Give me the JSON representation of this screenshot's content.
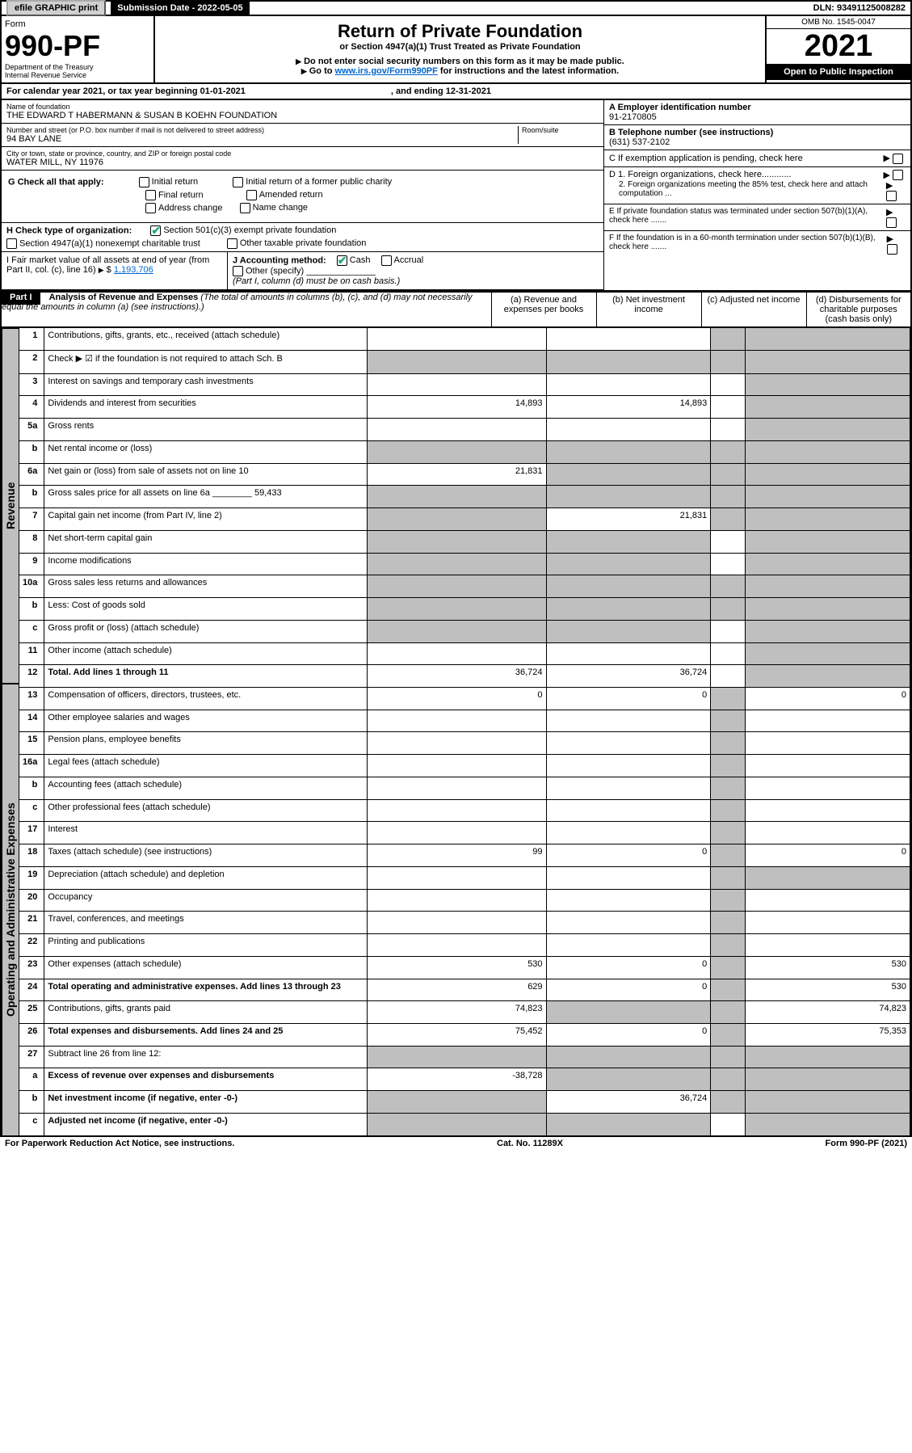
{
  "header": {
    "efile": "efile GRAPHIC print",
    "submission": "Submission Date - 2022-05-05",
    "dln": "DLN: 93491125008282"
  },
  "title": {
    "form": "Form",
    "form_no": "990-PF",
    "dept1": "Department of the Treasury",
    "dept2": "Internal Revenue Service",
    "main": "Return of Private Foundation",
    "sub": "or Section 4947(a)(1) Trust Treated as Private Foundation",
    "note1": "Do not enter social security numbers on this form as it may be made public.",
    "note2_pre": "Go to ",
    "note2_link": "www.irs.gov/Form990PF",
    "note2_post": " for instructions and the latest information.",
    "omb": "OMB No. 1545-0047",
    "year": "2021",
    "open": "Open to Public Inspection"
  },
  "calyear": {
    "text": "For calendar year 2021, or tax year beginning 01-01-2021",
    "ending": ", and ending 12-31-2021"
  },
  "info": {
    "name_label": "Name of foundation",
    "name": "THE EDWARD T HABERMANN & SUSAN B KOEHN FOUNDATION",
    "addr_label": "Number and street (or P.O. box number if mail is not delivered to street address)",
    "addr": "94 BAY LANE",
    "room_label": "Room/suite",
    "city_label": "City or town, state or province, country, and ZIP or foreign postal code",
    "city": "WATER MILL, NY  11976",
    "a_label": "A Employer identification number",
    "a_val": "91-2170805",
    "b_label": "B Telephone number (see instructions)",
    "b_val": "(631) 537-2102",
    "c_label": "C If exemption application is pending, check here",
    "d1": "D 1. Foreign organizations, check here............",
    "d2": "2. Foreign organizations meeting the 85% test, check here and attach computation ...",
    "e": "E If private foundation status was terminated under section 507(b)(1)(A), check here .......",
    "f": "F If the foundation is in a 60-month termination under section 507(b)(1)(B), check here ......."
  },
  "g": {
    "label": "G Check all that apply:",
    "initial": "Initial return",
    "initial_former": "Initial return of a former public charity",
    "final": "Final return",
    "amended": "Amended return",
    "address": "Address change",
    "name_change": "Name change"
  },
  "h": {
    "label": "H Check type of organization:",
    "501c3": "Section 501(c)(3) exempt private foundation",
    "4947": "Section 4947(a)(1) nonexempt charitable trust",
    "other_tax": "Other taxable private foundation"
  },
  "i": {
    "label": "I Fair market value of all assets at end of year (from Part II, col. (c), line 16)",
    "val": "1,193,706"
  },
  "j": {
    "label": "J Accounting method:",
    "cash": "Cash",
    "accrual": "Accrual",
    "other": "Other (specify)",
    "note": "(Part I, column (d) must be on cash basis.)"
  },
  "part1": {
    "label": "Part I",
    "title": "Analysis of Revenue and Expenses",
    "sub": " (The total of amounts in columns (b), (c), and (d) may not necessarily equal the amounts in column (a) (see instructions).)",
    "col_a": "(a) Revenue and expenses per books",
    "col_b": "(b) Net investment income",
    "col_c": "(c) Adjusted net income",
    "col_d": "(d) Disbursements for charitable purposes (cash basis only)"
  },
  "vert": {
    "revenue": "Revenue",
    "expenses": "Operating and Administrative Expenses"
  },
  "rows": [
    {
      "n": "1",
      "d": "Contributions, gifts, grants, etc., received (attach schedule)",
      "a": "",
      "b": "",
      "c": "s",
      "ds": "s"
    },
    {
      "n": "2",
      "d": "Check ▶ ☑ if the foundation is not required to attach Sch. B",
      "a": "s",
      "b": "s",
      "c": "s",
      "ds": "s",
      "bold_not": true
    },
    {
      "n": "3",
      "d": "Interest on savings and temporary cash investments",
      "a": "",
      "b": "",
      "c": "",
      "ds": "s"
    },
    {
      "n": "4",
      "d": "Dividends and interest from securities",
      "a": "14,893",
      "b": "14,893",
      "c": "",
      "ds": "s"
    },
    {
      "n": "5a",
      "d": "Gross rents",
      "a": "",
      "b": "",
      "c": "",
      "ds": "s"
    },
    {
      "n": "b",
      "d": "Net rental income or (loss)",
      "a": "s",
      "b": "s",
      "c": "s",
      "ds": "s"
    },
    {
      "n": "6a",
      "d": "Net gain or (loss) from sale of assets not on line 10",
      "a": "21,831",
      "b": "s",
      "c": "s",
      "ds": "s"
    },
    {
      "n": "b",
      "d": "Gross sales price for all assets on line 6a ________ 59,433",
      "a": "s",
      "b": "s",
      "c": "s",
      "ds": "s"
    },
    {
      "n": "7",
      "d": "Capital gain net income (from Part IV, line 2)",
      "a": "s",
      "b": "21,831",
      "c": "s",
      "ds": "s"
    },
    {
      "n": "8",
      "d": "Net short-term capital gain",
      "a": "s",
      "b": "s",
      "c": "",
      "ds": "s"
    },
    {
      "n": "9",
      "d": "Income modifications",
      "a": "s",
      "b": "s",
      "c": "",
      "ds": "s"
    },
    {
      "n": "10a",
      "d": "Gross sales less returns and allowances",
      "a": "s",
      "b": "s",
      "c": "s",
      "ds": "s"
    },
    {
      "n": "b",
      "d": "Less: Cost of goods sold",
      "a": "s",
      "b": "s",
      "c": "s",
      "ds": "s"
    },
    {
      "n": "c",
      "d": "Gross profit or (loss) (attach schedule)",
      "a": "s",
      "b": "s",
      "c": "",
      "ds": "s"
    },
    {
      "n": "11",
      "d": "Other income (attach schedule)",
      "a": "",
      "b": "",
      "c": "",
      "ds": "s"
    },
    {
      "n": "12",
      "d": "Total. Add lines 1 through 11",
      "a": "36,724",
      "b": "36,724",
      "c": "",
      "ds": "s",
      "bold": true
    },
    {
      "n": "13",
      "d": "Compensation of officers, directors, trustees, etc.",
      "a": "0",
      "b": "0",
      "c": "s",
      "ds": "0"
    },
    {
      "n": "14",
      "d": "Other employee salaries and wages",
      "a": "",
      "b": "",
      "c": "s",
      "ds": ""
    },
    {
      "n": "15",
      "d": "Pension plans, employee benefits",
      "a": "",
      "b": "",
      "c": "s",
      "ds": ""
    },
    {
      "n": "16a",
      "d": "Legal fees (attach schedule)",
      "a": "",
      "b": "",
      "c": "s",
      "ds": ""
    },
    {
      "n": "b",
      "d": "Accounting fees (attach schedule)",
      "a": "",
      "b": "",
      "c": "s",
      "ds": ""
    },
    {
      "n": "c",
      "d": "Other professional fees (attach schedule)",
      "a": "",
      "b": "",
      "c": "s",
      "ds": ""
    },
    {
      "n": "17",
      "d": "Interest",
      "a": "",
      "b": "",
      "c": "s",
      "ds": ""
    },
    {
      "n": "18",
      "d": "Taxes (attach schedule) (see instructions)",
      "a": "99",
      "b": "0",
      "c": "s",
      "ds": "0"
    },
    {
      "n": "19",
      "d": "Depreciation (attach schedule) and depletion",
      "a": "",
      "b": "",
      "c": "s",
      "ds": "s"
    },
    {
      "n": "20",
      "d": "Occupancy",
      "a": "",
      "b": "",
      "c": "s",
      "ds": ""
    },
    {
      "n": "21",
      "d": "Travel, conferences, and meetings",
      "a": "",
      "b": "",
      "c": "s",
      "ds": ""
    },
    {
      "n": "22",
      "d": "Printing and publications",
      "a": "",
      "b": "",
      "c": "s",
      "ds": ""
    },
    {
      "n": "23",
      "d": "Other expenses (attach schedule)",
      "a": "530",
      "b": "0",
      "c": "s",
      "ds": "530"
    },
    {
      "n": "24",
      "d": "Total operating and administrative expenses. Add lines 13 through 23",
      "a": "629",
      "b": "0",
      "c": "s",
      "ds": "530",
      "bold": true
    },
    {
      "n": "25",
      "d": "Contributions, gifts, grants paid",
      "a": "74,823",
      "b": "s",
      "c": "s",
      "ds": "74,823"
    },
    {
      "n": "26",
      "d": "Total expenses and disbursements. Add lines 24 and 25",
      "a": "75,452",
      "b": "0",
      "c": "s",
      "ds": "75,353",
      "bold": true
    },
    {
      "n": "27",
      "d": "Subtract line 26 from line 12:",
      "a": "s",
      "b": "s",
      "c": "s",
      "ds": "s"
    },
    {
      "n": "a",
      "d": "Excess of revenue over expenses and disbursements",
      "a": "-38,728",
      "b": "s",
      "c": "s",
      "ds": "s",
      "bold": true
    },
    {
      "n": "b",
      "d": "Net investment income (if negative, enter -0-)",
      "a": "s",
      "b": "36,724",
      "c": "s",
      "ds": "s",
      "bold": true
    },
    {
      "n": "c",
      "d": "Adjusted net income (if negative, enter -0-)",
      "a": "s",
      "b": "s",
      "c": "",
      "ds": "s",
      "bold": true
    }
  ],
  "footer": {
    "left": "For Paperwork Reduction Act Notice, see instructions.",
    "mid": "Cat. No. 11289X",
    "right": "Form 990-PF (2021)"
  }
}
